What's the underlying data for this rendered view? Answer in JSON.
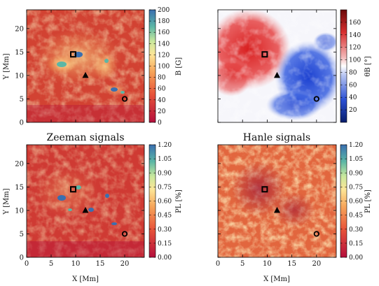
{
  "chart_data": [
    {
      "type": "heatmap",
      "panel": "top-left",
      "title": "",
      "xlabel": "",
      "ylabel": "Y [Mm]",
      "xlim": [
        0,
        24
      ],
      "ylim": [
        0,
        24
      ],
      "xticks": [],
      "yticks": [
        0,
        5,
        10,
        15,
        20
      ],
      "colorbar": {
        "label": "B [G]",
        "range": [
          0,
          200
        ],
        "ticks": [
          0,
          20,
          40,
          60,
          80,
          100,
          120,
          140,
          160,
          180,
          200
        ]
      },
      "colormap": "red-orange-yellow-green-blue",
      "markers": [
        {
          "shape": "square",
          "x": 9.5,
          "y": 14.5
        },
        {
          "shape": "triangle",
          "x": 12,
          "y": 10
        },
        {
          "shape": "circle",
          "x": 20,
          "y": 5
        }
      ]
    },
    {
      "type": "heatmap",
      "panel": "top-right",
      "title": "",
      "xlabel": "",
      "ylabel": "",
      "xlim": [
        0,
        24
      ],
      "ylim": [
        0,
        24
      ],
      "xticks": [],
      "yticks": [],
      "colorbar": {
        "label": "θB [°]",
        "range": [
          0,
          180
        ],
        "ticks": [
          20,
          40,
          60,
          80,
          100,
          120,
          140,
          160
        ]
      },
      "colormap": "blue-white-red",
      "markers": [
        {
          "shape": "square",
          "x": 9.5,
          "y": 14.5
        },
        {
          "shape": "triangle",
          "x": 12,
          "y": 10
        },
        {
          "shape": "circle",
          "x": 20,
          "y": 5
        }
      ]
    },
    {
      "type": "heatmap",
      "panel": "bottom-left",
      "title": "Zeeman signals",
      "xlabel": "X [Mm]",
      "ylabel": "Y [Mm]",
      "xlim": [
        0,
        24
      ],
      "ylim": [
        0,
        24
      ],
      "xticks": [
        0,
        5,
        10,
        15,
        20
      ],
      "yticks": [
        0,
        5,
        10,
        15,
        20
      ],
      "colorbar": {
        "label": "PL [%]",
        "range": [
          0,
          1.2
        ],
        "ticks": [
          "0.00",
          "0.15",
          "0.30",
          "0.45",
          "0.60",
          "0.75",
          "0.90",
          "1.05",
          "1.20"
        ]
      },
      "colormap": "red-orange-yellow-green-blue",
      "markers": [
        {
          "shape": "square",
          "x": 9.5,
          "y": 14.5
        },
        {
          "shape": "triangle",
          "x": 12,
          "y": 10
        },
        {
          "shape": "circle",
          "x": 20,
          "y": 5
        }
      ]
    },
    {
      "type": "heatmap",
      "panel": "bottom-right",
      "title": "Hanle signals",
      "xlabel": "X [Mm]",
      "ylabel": "",
      "xlim": [
        0,
        24
      ],
      "ylim": [
        0,
        24
      ],
      "xticks": [
        0,
        5,
        10,
        15,
        20
      ],
      "yticks": [],
      "colorbar": {
        "label": "PL [%]",
        "range": [
          0,
          1.2
        ],
        "ticks": [
          "0.00",
          "0.15",
          "0.30",
          "0.45",
          "0.60",
          "0.75",
          "0.90",
          "1.05",
          "1.20"
        ]
      },
      "colormap": "red-orange-yellow-green-blue",
      "markers": [
        {
          "shape": "square",
          "x": 9.5,
          "y": 14.5
        },
        {
          "shape": "triangle",
          "x": 12,
          "y": 10
        },
        {
          "shape": "circle",
          "x": 20,
          "y": 5
        }
      ]
    }
  ]
}
